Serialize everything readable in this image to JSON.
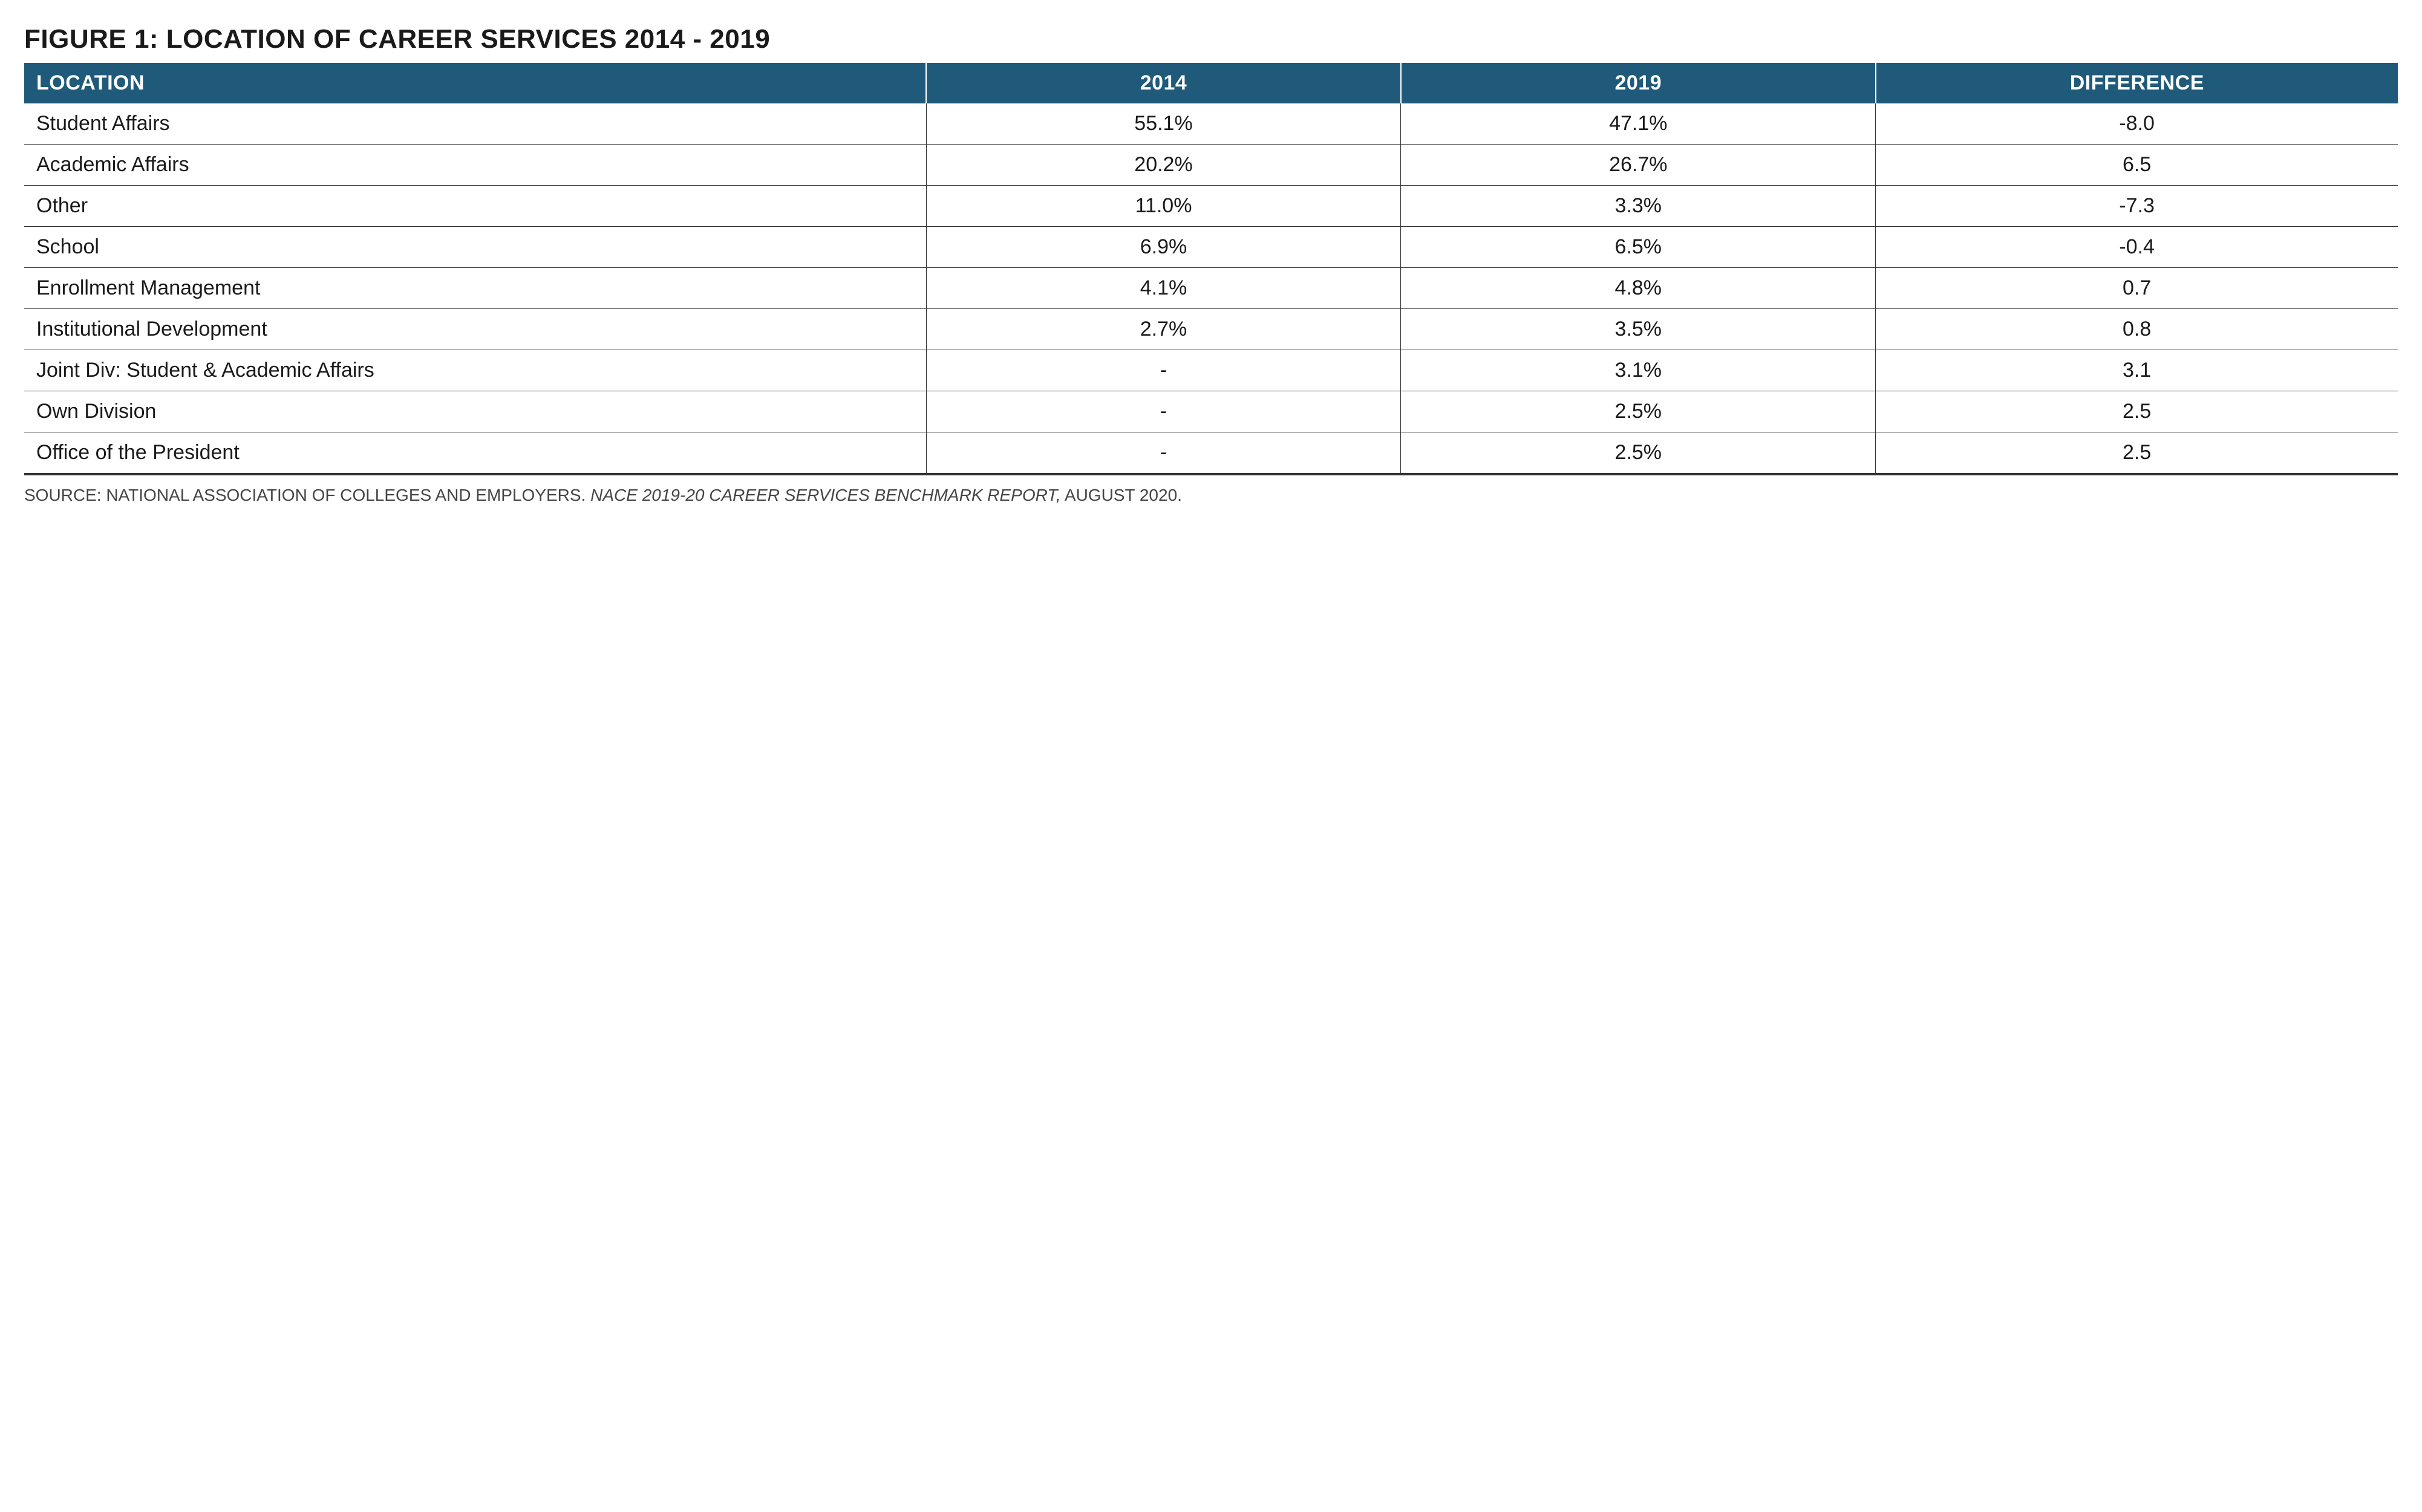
{
  "figure_title": "FIGURE 1: LOCATION OF CAREER SERVICES 2014 - 2019",
  "header_bg_color": "#1f5a7a",
  "header_text_color": "#ffffff",
  "border_color": "#333333",
  "body_bg_color": "#ffffff",
  "text_color": "#1a1a1a",
  "title_fontsize": 44,
  "header_fontsize": 34,
  "cell_fontsize": 34,
  "source_fontsize": 28,
  "columns": {
    "location": {
      "label": "LOCATION",
      "width_pct": 38,
      "align": "left"
    },
    "y2014": {
      "label": "2014",
      "width_pct": 20,
      "align": "center"
    },
    "y2019": {
      "label": "2019",
      "width_pct": 20,
      "align": "center"
    },
    "diff": {
      "label": "DIFFERENCE",
      "width_pct": 22,
      "align": "center"
    }
  },
  "rows": [
    {
      "location": "Student Affairs",
      "y2014": "55.1%",
      "y2019": "47.1%",
      "diff": "-8.0"
    },
    {
      "location": "Academic Affairs",
      "y2014": "20.2%",
      "y2019": "26.7%",
      "diff": "6.5"
    },
    {
      "location": "Other",
      "y2014": "11.0%",
      "y2019": "3.3%",
      "diff": "-7.3"
    },
    {
      "location": "School",
      "y2014": "6.9%",
      "y2019": "6.5%",
      "diff": "-0.4"
    },
    {
      "location": "Enrollment Management",
      "y2014": "4.1%",
      "y2019": "4.8%",
      "diff": "0.7"
    },
    {
      "location": "Institutional Development",
      "y2014": "2.7%",
      "y2019": "3.5%",
      "diff": "0.8"
    },
    {
      "location": "Joint Div: Student & Academic Affairs",
      "y2014": "-",
      "y2019": "3.1%",
      "diff": "3.1"
    },
    {
      "location": "Own Division",
      "y2014": "-",
      "y2019": "2.5%",
      "diff": "2.5"
    },
    {
      "location": "Office of the President",
      "y2014": "-",
      "y2019": "2.5%",
      "diff": "2.5"
    }
  ],
  "source": {
    "prefix": "SOURCE: NATIONAL ASSOCIATION OF COLLEGES AND EMPLOYERS. ",
    "italic": "NACE 2019-20 CAREER SERVICES BENCHMARK REPORT,",
    "suffix": " AUGUST 2020."
  }
}
